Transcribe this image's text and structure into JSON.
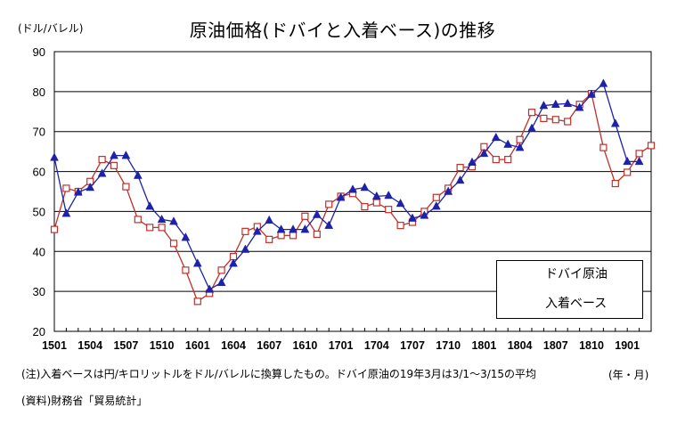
{
  "chart_data": {
    "type": "line",
    "title": "原油価格(ドバイと入着ベース)の推移",
    "ylabel": "(ドル/バレル)",
    "xlabel": "(年・月)",
    "ylim": [
      20,
      90
    ],
    "y_ticks": [
      20,
      30,
      40,
      50,
      60,
      70,
      80,
      90
    ],
    "x_tick_labels": [
      "1501",
      "1504",
      "1507",
      "1510",
      "1601",
      "1604",
      "1607",
      "1610",
      "1701",
      "1704",
      "1707",
      "1710",
      "1801",
      "1804",
      "1807",
      "1810",
      "1901"
    ],
    "x_tick_every": 3,
    "months": [
      "1501",
      "1502",
      "1503",
      "1504",
      "1505",
      "1506",
      "1507",
      "1508",
      "1509",
      "1510",
      "1511",
      "1512",
      "1601",
      "1602",
      "1603",
      "1604",
      "1605",
      "1606",
      "1607",
      "1608",
      "1609",
      "1610",
      "1611",
      "1612",
      "1701",
      "1702",
      "1703",
      "1704",
      "1705",
      "1706",
      "1707",
      "1708",
      "1709",
      "1710",
      "1711",
      "1712",
      "1801",
      "1802",
      "1803",
      "1804",
      "1805",
      "1806",
      "1807",
      "1808",
      "1809",
      "1810",
      "1811",
      "1812",
      "1901",
      "1902",
      "1903"
    ],
    "grid": true,
    "legend_position": "bottom-right",
    "series": [
      {
        "name": "ドバイ原油",
        "color": "#c0302a",
        "marker": "square",
        "values": [
          45.5,
          55.8,
          55.0,
          57.5,
          63.0,
          61.5,
          56.2,
          48.0,
          46.0,
          46.0,
          42.0,
          35.3,
          27.5,
          29.5,
          35.3,
          38.7,
          45.0,
          46.2,
          43.0,
          44.0,
          44.0,
          48.8,
          44.3,
          51.8,
          53.8,
          54.5,
          51.2,
          52.2,
          50.5,
          46.5,
          47.3,
          50.0,
          53.5,
          55.8,
          61.0,
          61.2,
          66.2,
          63.0,
          63.0,
          68.0,
          74.8,
          73.3,
          73.0,
          72.5,
          76.8,
          79.5,
          66.0,
          57.0,
          59.8,
          64.5,
          66.5
        ]
      },
      {
        "name": "入着ベース",
        "color": "#1d22a8",
        "marker": "triangle",
        "values": [
          63.5,
          49.5,
          54.8,
          56.0,
          59.5,
          64.0,
          64.0,
          59.0,
          51.3,
          48.0,
          47.5,
          43.5,
          37.0,
          30.5,
          32.2,
          37.0,
          40.5,
          45.0,
          47.8,
          45.5,
          45.5,
          45.5,
          49.2,
          46.5,
          53.5,
          55.5,
          56.0,
          53.8,
          54.0,
          52.0,
          48.3,
          49.0,
          51.3,
          55.0,
          57.8,
          62.3,
          64.5,
          68.5,
          66.8,
          66.0,
          70.8,
          76.5,
          76.8,
          77.0,
          76.0,
          79.3,
          82.0,
          72.0,
          62.5,
          62.5,
          null
        ]
      }
    ]
  },
  "footnote": "(注)入着ベースは円/キロリットルをドル/バレルに換算したもの。ドバイ原油の19年3月は3/1～3/15の平均",
  "source": "(資料)財務省「貿易統計」"
}
